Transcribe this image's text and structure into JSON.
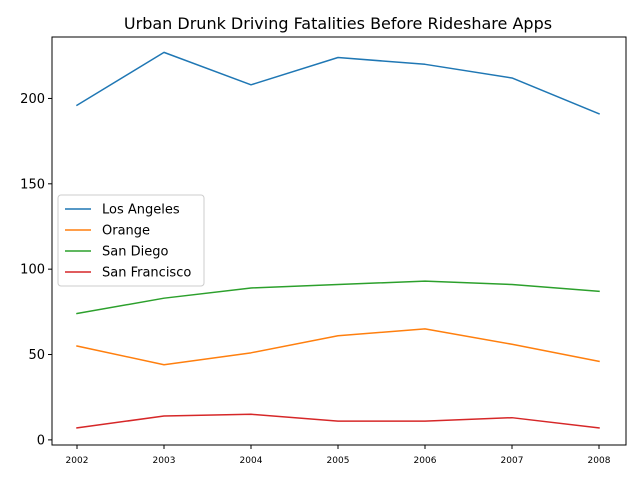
{
  "chart_data": {
    "type": "line",
    "title": "Urban Drunk Driving Fatalities Before Rideshare Apps",
    "xlabel": "",
    "ylabel": "",
    "x": [
      "2002",
      "2003",
      "2004",
      "2005",
      "2006",
      "2007",
      "2008"
    ],
    "ylim": [
      -3,
      236
    ],
    "yticks": [
      0,
      50,
      100,
      150,
      200
    ],
    "grid": false,
    "legend_position": "center-left",
    "series": [
      {
        "name": "Los Angeles",
        "color": "#1f77b4",
        "values": [
          196,
          227,
          208,
          224,
          220,
          212,
          191
        ]
      },
      {
        "name": "Orange",
        "color": "#ff7f0e",
        "values": [
          55,
          44,
          51,
          61,
          65,
          56,
          46
        ]
      },
      {
        "name": "San Diego",
        "color": "#2ca02c",
        "values": [
          74,
          83,
          89,
          91,
          93,
          91,
          87
        ]
      },
      {
        "name": "San Francisco",
        "color": "#d62728",
        "values": [
          7,
          14,
          15,
          11,
          11,
          13,
          7
        ]
      }
    ]
  }
}
